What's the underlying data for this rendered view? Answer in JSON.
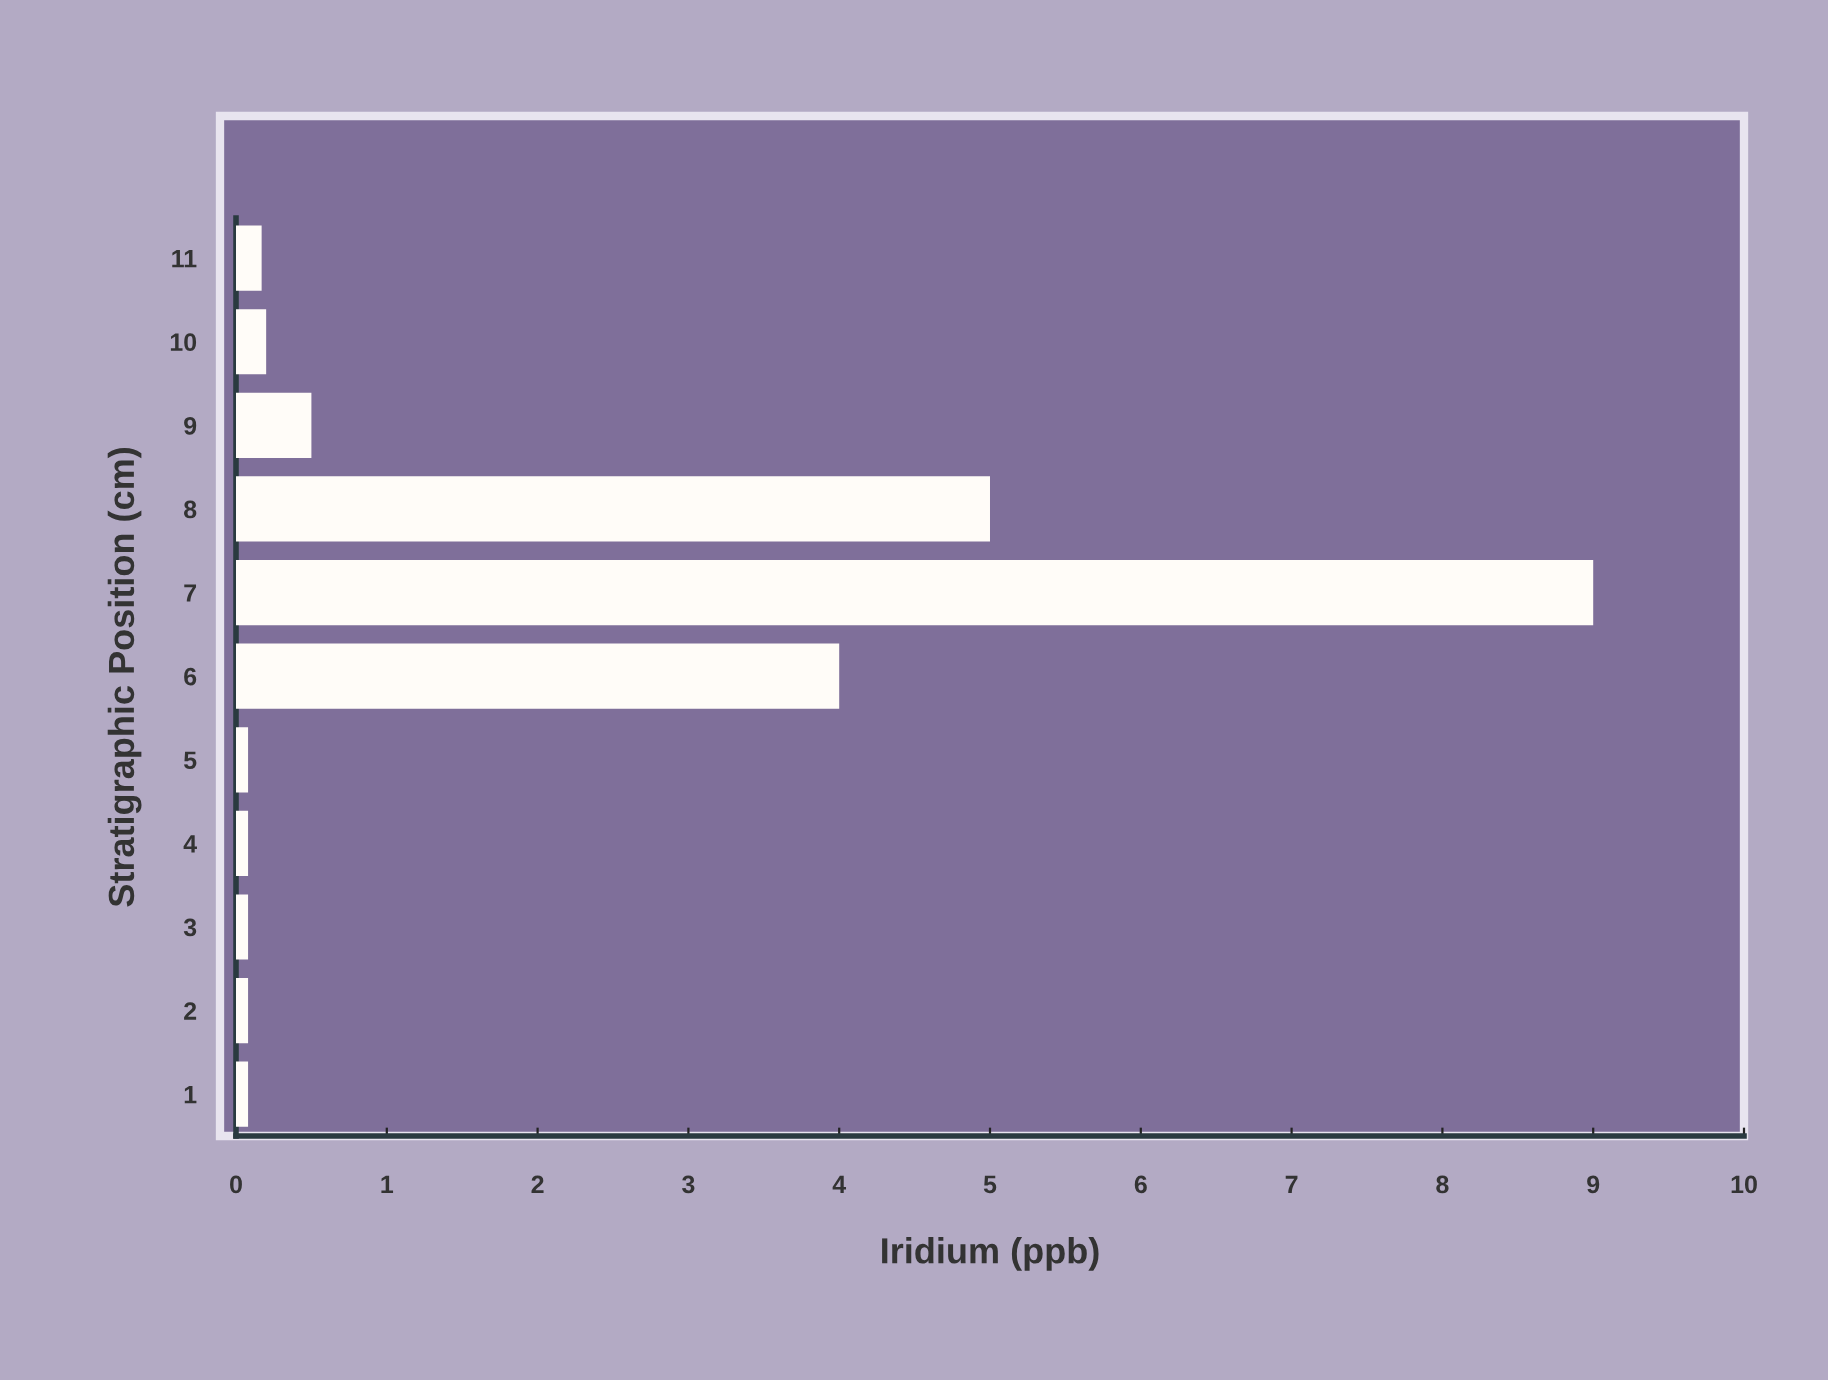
{
  "chart_data": {
    "type": "bar",
    "orientation": "horizontal",
    "categories": [
      "11",
      "10",
      "9",
      "8",
      "7",
      "6",
      "5",
      "4",
      "3",
      "2",
      "1"
    ],
    "values": [
      0.17,
      0.2,
      0.5,
      5,
      9,
      4,
      0.08,
      0.08,
      0.08,
      0.08,
      0.08
    ],
    "color": "#fffcf8",
    "xlabel": "Iridium (ppb)",
    "ylabel": "Stratigraphic Position (cm)",
    "xlim": [
      0,
      10
    ],
    "xticks": [
      0,
      1,
      2,
      3,
      4,
      5,
      6,
      7,
      8,
      9,
      10
    ]
  }
}
